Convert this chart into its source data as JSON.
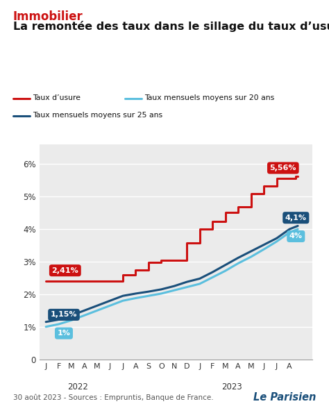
{
  "title_category": "Immobilier",
  "title_main": "La remontée des taux dans le sillage du taux d’usure",
  "subtitle": "30 août 2023 - Sources : Empruntis, Banque de France.",
  "legend": [
    {
      "label": "Taux d’usure",
      "color": "#cc1111"
    },
    {
      "label": "Taux mensuels moyens sur 20 ans",
      "color": "#5bbfde"
    },
    {
      "label": "Taux mensuels moyens sur 25 ans",
      "color": "#1a4f7a"
    }
  ],
  "usure_x": [
    0,
    1,
    1,
    2,
    2,
    3,
    3,
    4,
    4,
    5,
    5,
    6,
    6,
    7,
    7,
    8,
    8,
    9,
    9,
    10,
    10,
    11,
    11,
    12,
    12,
    13,
    13,
    14,
    14,
    15,
    15,
    16,
    16,
    17,
    17,
    18,
    18,
    19,
    19,
    19.5,
    19.5,
    19.65
  ],
  "usure_y": [
    2.41,
    2.41,
    2.41,
    2.41,
    2.41,
    2.41,
    2.41,
    2.41,
    2.41,
    2.41,
    2.41,
    2.41,
    2.6,
    2.6,
    2.75,
    2.75,
    2.97,
    2.97,
    3.05,
    3.05,
    3.05,
    3.05,
    3.57,
    3.57,
    4.0,
    4.0,
    4.24,
    4.24,
    4.52,
    4.52,
    4.68,
    4.68,
    5.09,
    5.09,
    5.33,
    5.33,
    5.56,
    5.56,
    5.56,
    5.56,
    5.62,
    5.62
  ],
  "ans20_x": [
    0,
    1,
    2,
    3,
    4,
    5,
    6,
    7,
    8,
    9,
    10,
    11,
    12,
    13,
    14,
    15,
    16,
    17,
    18,
    19,
    19.65
  ],
  "ans20_y": [
    1.0,
    1.08,
    1.2,
    1.35,
    1.5,
    1.65,
    1.8,
    1.88,
    1.95,
    2.02,
    2.12,
    2.22,
    2.32,
    2.52,
    2.72,
    2.95,
    3.15,
    3.38,
    3.62,
    3.9,
    4.0
  ],
  "ans25_x": [
    0,
    1,
    2,
    3,
    4,
    5,
    6,
    7,
    8,
    9,
    10,
    11,
    12,
    13,
    14,
    15,
    16,
    17,
    18,
    19,
    19.65
  ],
  "ans25_y": [
    1.15,
    1.22,
    1.35,
    1.5,
    1.65,
    1.8,
    1.95,
    2.02,
    2.08,
    2.15,
    2.25,
    2.38,
    2.48,
    2.68,
    2.9,
    3.12,
    3.32,
    3.52,
    3.72,
    4.0,
    4.1
  ],
  "xtick_positions": [
    0,
    1,
    2,
    3,
    4,
    5,
    6,
    7,
    8,
    9,
    10,
    11,
    12,
    13,
    14,
    15,
    16,
    17,
    18,
    19
  ],
  "xtick_labels": [
    "J",
    "F",
    "M",
    "A",
    "M",
    "J",
    "J",
    "A",
    "S",
    "O",
    "N",
    "D",
    "J",
    "F",
    "M",
    "A",
    "M",
    "J",
    "J",
    "A"
  ],
  "year_2022_x": 2.5,
  "year_2023_x": 14.5,
  "ytick_values": [
    0,
    1,
    2,
    3,
    4,
    5,
    6
  ],
  "ytick_labels": [
    "0",
    "1%",
    "2%",
    "3%",
    "4%",
    "5%",
    "6%"
  ],
  "ylim": [
    0,
    6.6
  ],
  "xlim": [
    -0.5,
    20.8
  ],
  "color_usure": "#cc1111",
  "color_20ans": "#5bbfde",
  "color_25ans": "#1a4f7a",
  "bg_color": "#ebebeb",
  "ann_usure_start_x": 1.5,
  "ann_usure_start_y": 2.41,
  "ann_usure_end_x": 18.5,
  "ann_usure_end_y": 5.56,
  "ann_20ans_start_x": 1.5,
  "ann_20ans_start_y": 1.0,
  "ann_20ans_end_x": 19.65,
  "ann_20ans_end_y": 4.0,
  "ann_25ans_start_x": 1.5,
  "ann_25ans_start_y": 1.15,
  "ann_25ans_end_x": 19.65,
  "ann_25ans_end_y": 4.1,
  "le_parisien_color": "#1a4f7a"
}
